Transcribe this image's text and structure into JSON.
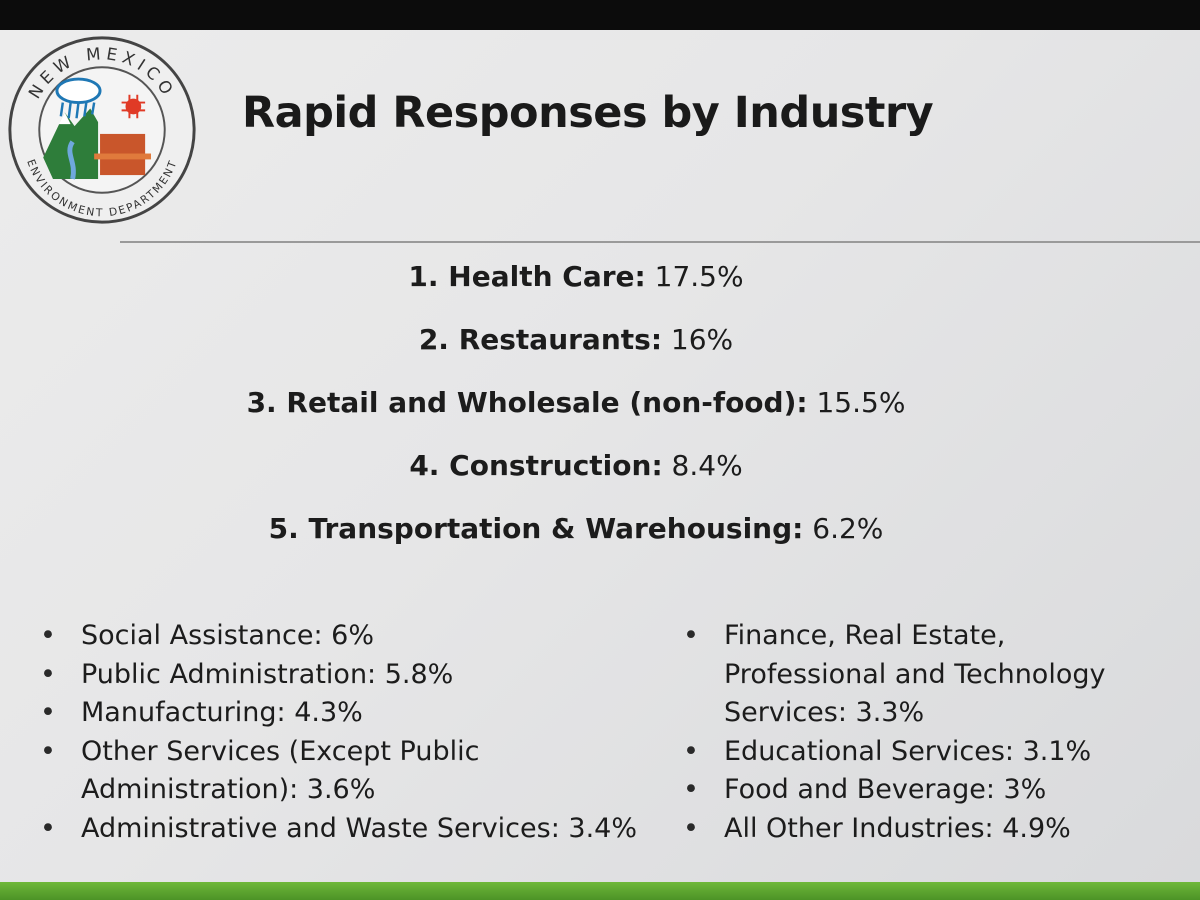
{
  "slide": {
    "title": "Rapid Responses by Industry",
    "logo": {
      "top_text": "NEW MEXICO",
      "bottom_text": "ENVIRONMENT DEPARTMENT",
      "colors": {
        "sun": "#e03a26",
        "mountain": "#2e7d3a",
        "mesa": "#c9562b",
        "cloud": "#1f78b5",
        "ring": "#444444"
      }
    },
    "top_five": [
      {
        "label": "1. Health Care:",
        "value": "17.5%"
      },
      {
        "label": "2. Restaurants:",
        "value": "16%"
      },
      {
        "label": "3. Retail and Wholesale (non-food):",
        "value": "15.5%"
      },
      {
        "label": "4. Construction:",
        "value": "8.4%"
      },
      {
        "label": "5. Transportation & Warehousing:",
        "value": "6.2%"
      }
    ],
    "bullet_symbol": "•",
    "left_list": [
      {
        "lines": [
          "Social Assistance: 6%"
        ]
      },
      {
        "lines": [
          "Public Administration: 5.8%"
        ]
      },
      {
        "lines": [
          "Manufacturing: 4.3%"
        ]
      },
      {
        "lines": [
          "Other Services (Except Public",
          "Administration): 3.6%"
        ]
      },
      {
        "lines": [
          "Administrative and Waste Services: 3.4%"
        ]
      }
    ],
    "right_list": [
      {
        "lines": [
          "Finance, Real Estate,",
          "Professional and Technology",
          "Services: 3.3%"
        ]
      },
      {
        "lines": [
          "Educational Services: 3.1%"
        ]
      },
      {
        "lines": [
          "Food and Beverage: 3%"
        ]
      },
      {
        "lines": [
          "All Other Industries: 4.9%"
        ]
      }
    ],
    "colors": {
      "accent_bar": "#5aa630",
      "text": "#1c1c1c",
      "background": "#e6e6e7"
    }
  }
}
